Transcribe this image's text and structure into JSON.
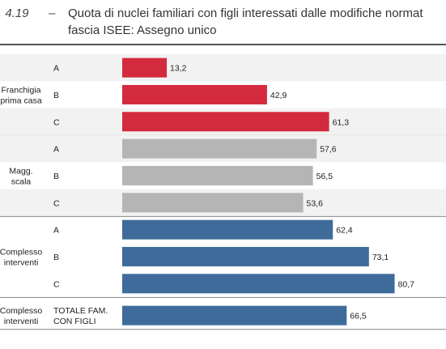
{
  "figure": {
    "number": ". 4.19",
    "dash": "–",
    "title_line1": "Quota di nuclei familiari con figli interessati dalle modifiche normat",
    "title_line2": "fascia ISEE: Assegno unico"
  },
  "colors": {
    "red": "#d42a3e",
    "gray": "#b5b5b5",
    "blue": "#3f6b9a",
    "band": "#f2f2f2"
  },
  "chart_data": {
    "type": "bar",
    "orientation": "horizontal",
    "title": "Quota di nuclei familiari con figli interessati dalle modifiche normat fascia ISEE: Assegno unico",
    "xlim": [
      0,
      100
    ],
    "groups": [
      {
        "label_lines": [
          "Franchigia",
          "prima casa"
        ],
        "color_key": "red",
        "band": true,
        "bars": [
          {
            "category": "A",
            "value": 13.2,
            "label": "13,2"
          },
          {
            "category": "B",
            "value": 42.9,
            "label": "42,9"
          },
          {
            "category": "C",
            "value": 61.3,
            "label": "61,3"
          }
        ]
      },
      {
        "label_lines": [
          "Magg.",
          "scala"
        ],
        "color_key": "gray",
        "band": true,
        "bars": [
          {
            "category": "A",
            "value": 57.6,
            "label": "57,6"
          },
          {
            "category": "B",
            "value": 56.5,
            "label": "56,5"
          },
          {
            "category": "C",
            "value": 53.6,
            "label": "53,6"
          }
        ]
      },
      {
        "label_lines": [
          "Complesso",
          "interventi"
        ],
        "color_key": "blue",
        "band": false,
        "bars": [
          {
            "category": "A",
            "value": 62.4,
            "label": "62,4"
          },
          {
            "category": "B",
            "value": 73.1,
            "label": "73,1"
          },
          {
            "category": "C",
            "value": 80.7,
            "label": "80,7"
          }
        ]
      },
      {
        "label_lines": [
          "Complesso",
          "interventi"
        ],
        "color_key": "blue",
        "band": false,
        "bars": [
          {
            "category_lines": [
              "TOTALE FAM.",
              "CON FIGLI"
            ],
            "value": 66.5,
            "label": "66,5"
          }
        ]
      }
    ]
  }
}
